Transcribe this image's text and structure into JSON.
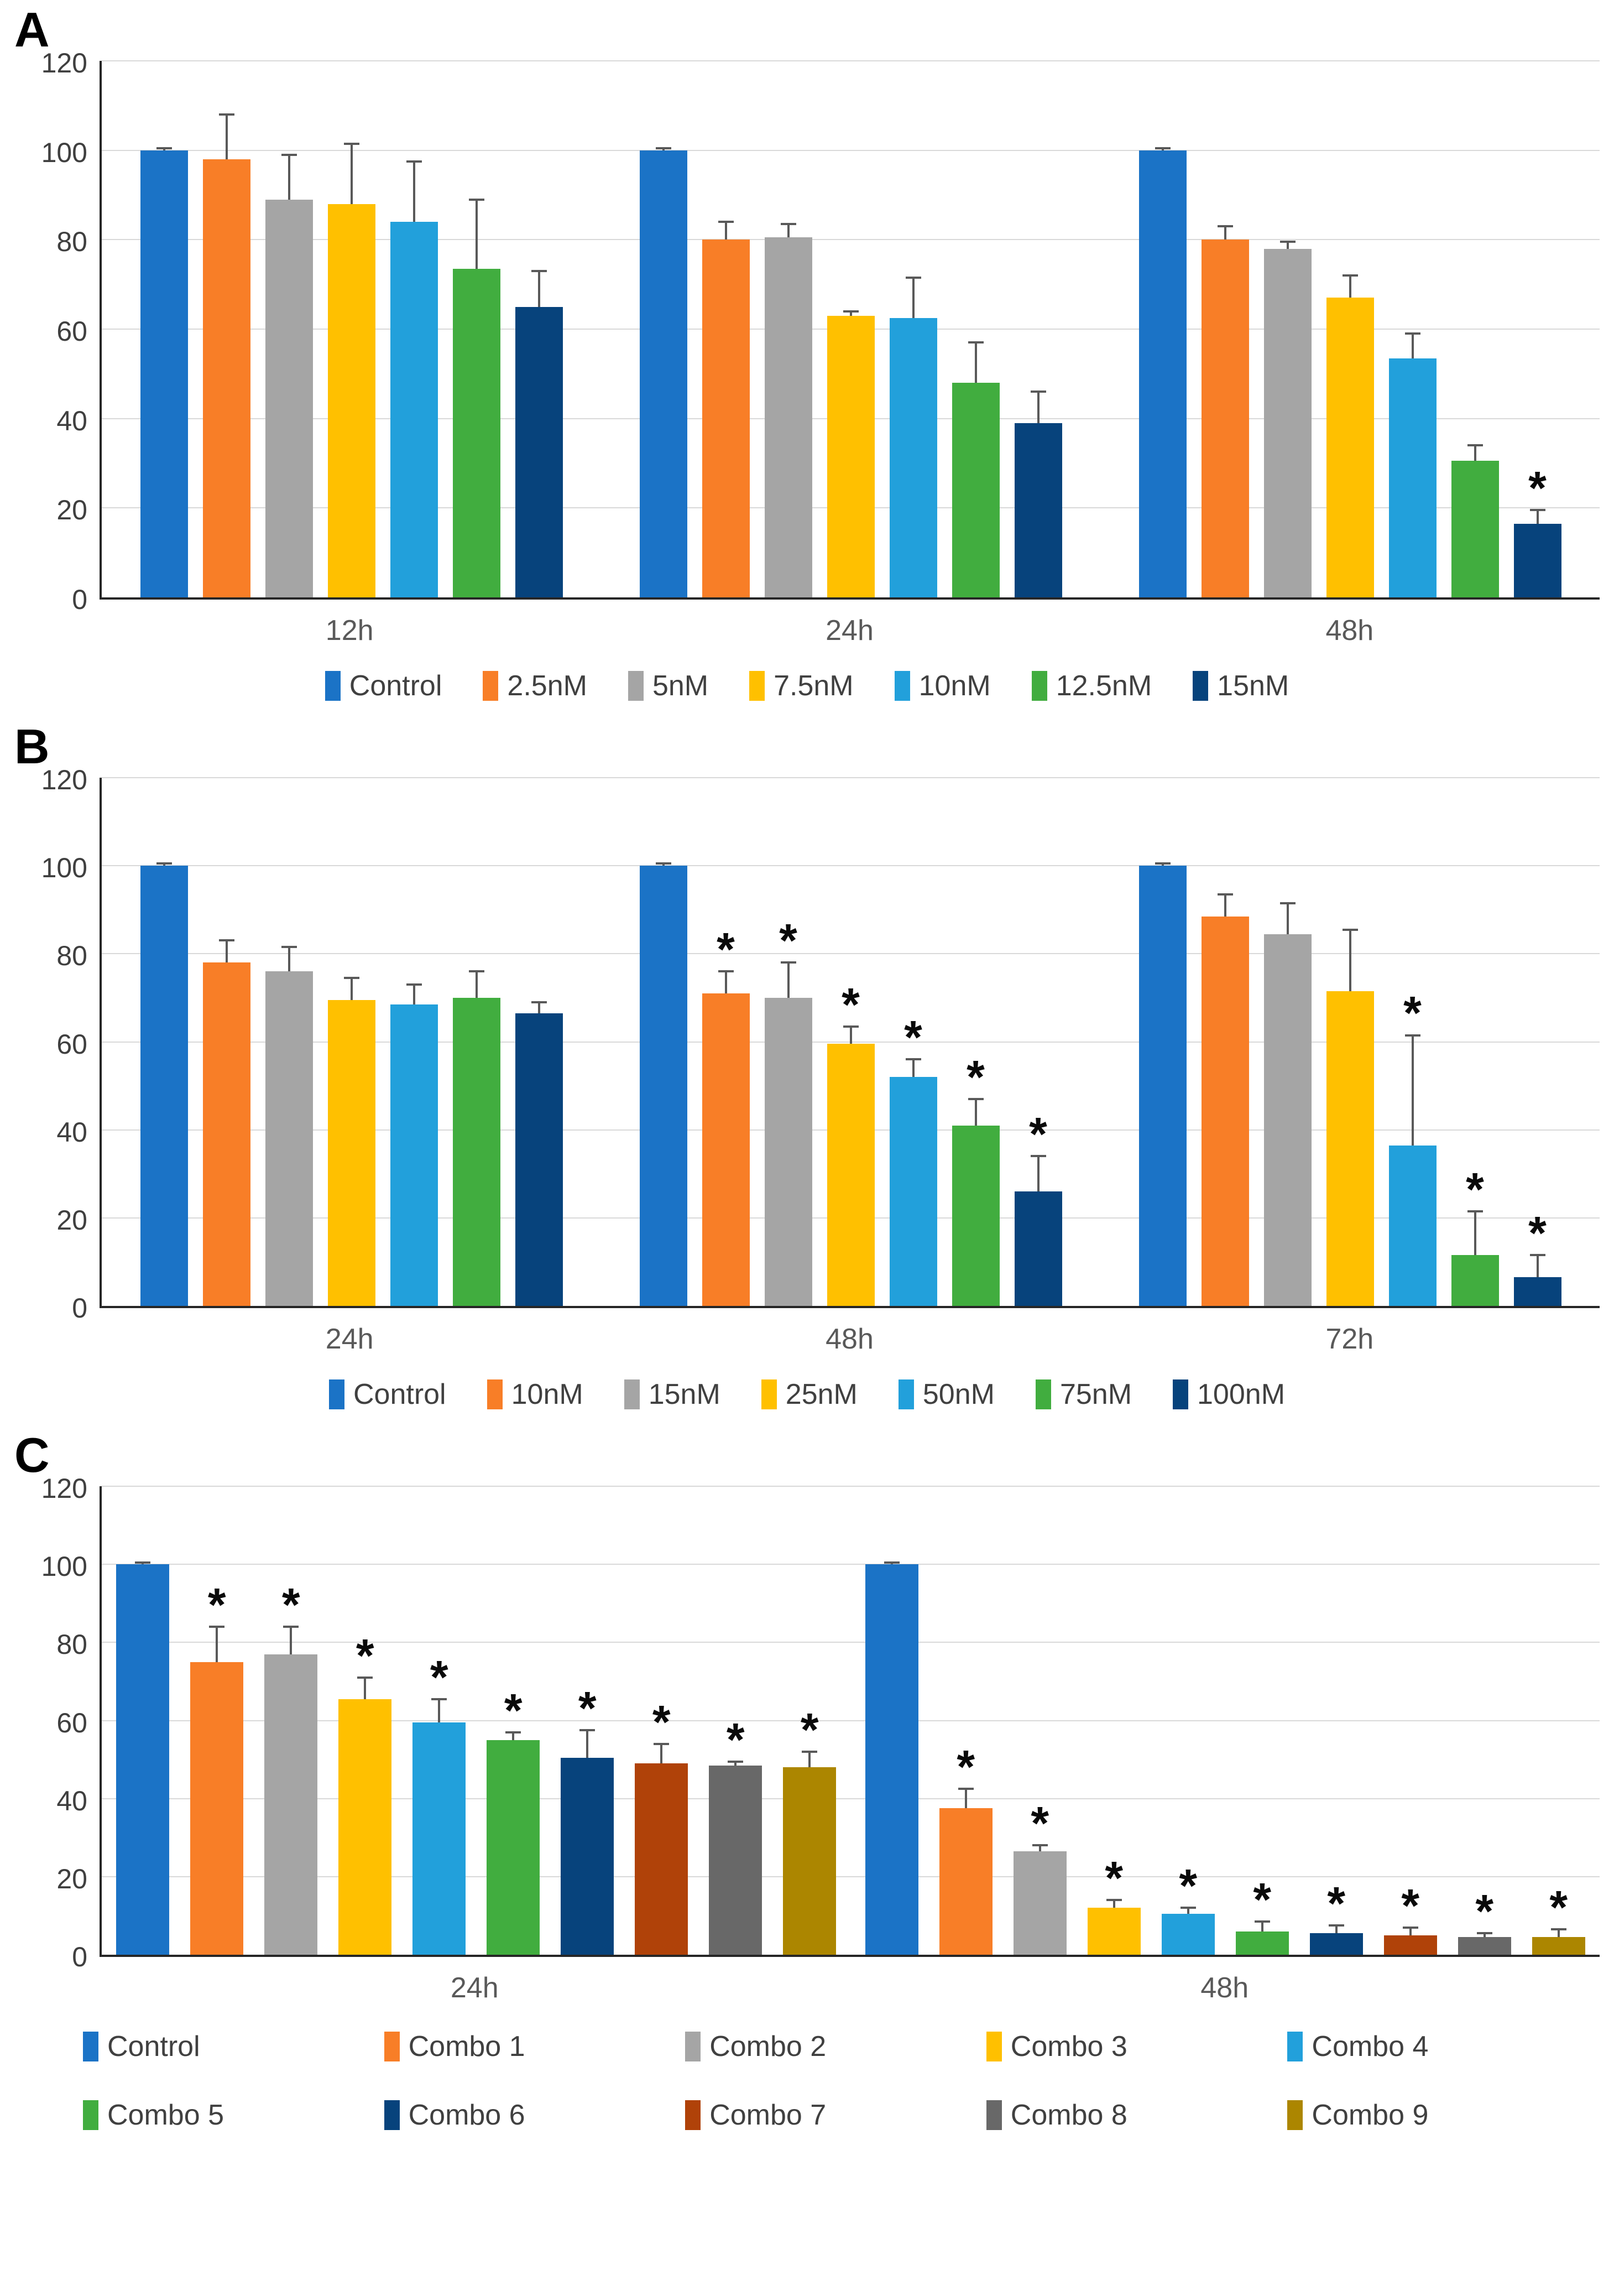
{
  "colors": {
    "axis_line": "#262626",
    "gridline": "#D9D9D9",
    "error_bar": "#595959",
    "tick_text": "#3F3F3F",
    "category_text": "#595959",
    "legend_text": "#404040"
  },
  "chart_data": [
    {
      "panel_label": "A",
      "type": "bar",
      "categories": [
        "12h",
        "24h",
        "48h"
      ],
      "ylim": [
        0,
        120
      ],
      "yticks": [
        0,
        20,
        40,
        60,
        80,
        100,
        120
      ],
      "grid": true,
      "legend_position": "bottom",
      "significance_marker": "*",
      "series": [
        {
          "name": "Control",
          "color": "#1B73C6",
          "values": [
            100,
            100,
            100
          ],
          "errors": [
            0.5,
            0.5,
            0.5
          ],
          "sig": [
            false,
            false,
            false
          ]
        },
        {
          "name": "2.5nM",
          "color": "#F87E27",
          "values": [
            98,
            80,
            80
          ],
          "errors": [
            10,
            4,
            3
          ],
          "sig": [
            false,
            false,
            false
          ]
        },
        {
          "name": "5nM",
          "color": "#A5A5A5",
          "values": [
            89,
            80.5,
            78
          ],
          "errors": [
            10,
            3,
            1.5
          ],
          "sig": [
            false,
            false,
            false
          ]
        },
        {
          "name": "7.5nM",
          "color": "#FFC000",
          "values": [
            88,
            63,
            67
          ],
          "errors": [
            13.5,
            1,
            5
          ],
          "sig": [
            false,
            false,
            false
          ]
        },
        {
          "name": "10nM",
          "color": "#22A0DB",
          "values": [
            84,
            62.5,
            53.5
          ],
          "errors": [
            13.5,
            9,
            5.5
          ],
          "sig": [
            false,
            false,
            false
          ]
        },
        {
          "name": "12.5nM",
          "color": "#41AD3F",
          "values": [
            73.5,
            48,
            30.5
          ],
          "errors": [
            15.5,
            9,
            3.5
          ],
          "sig": [
            false,
            false,
            false
          ]
        },
        {
          "name": "15nM",
          "color": "#07437C",
          "values": [
            65,
            39,
            16.5
          ],
          "errors": [
            8,
            7,
            3
          ],
          "sig": [
            false,
            false,
            true
          ]
        }
      ]
    },
    {
      "panel_label": "B",
      "type": "bar",
      "categories": [
        "24h",
        "48h",
        "72h"
      ],
      "ylim": [
        0,
        120
      ],
      "yticks": [
        0,
        20,
        40,
        60,
        80,
        100,
        120
      ],
      "grid": true,
      "legend_position": "bottom",
      "significance_marker": "*",
      "series": [
        {
          "name": "Control",
          "color": "#1B73C6",
          "values": [
            100,
            100,
            100
          ],
          "errors": [
            0.5,
            0.5,
            0.5
          ],
          "sig": [
            false,
            false,
            false
          ]
        },
        {
          "name": "10nM",
          "color": "#F87E27",
          "values": [
            78,
            71,
            88.5
          ],
          "errors": [
            5,
            5,
            5
          ],
          "sig": [
            false,
            true,
            false
          ]
        },
        {
          "name": "15nM",
          "color": "#A5A5A5",
          "values": [
            76,
            70,
            84.5
          ],
          "errors": [
            5.5,
            8,
            7
          ],
          "sig": [
            false,
            true,
            false
          ]
        },
        {
          "name": "25nM",
          "color": "#FFC000",
          "values": [
            69.5,
            59.5,
            71.5
          ],
          "errors": [
            5,
            4,
            14
          ],
          "sig": [
            false,
            true,
            false
          ]
        },
        {
          "name": "50nM",
          "color": "#22A0DB",
          "values": [
            68.5,
            52,
            36.5
          ],
          "errors": [
            4.5,
            4,
            25
          ],
          "sig": [
            false,
            true,
            true
          ]
        },
        {
          "name": "75nM",
          "color": "#41AD3F",
          "values": [
            70,
            41,
            11.5
          ],
          "errors": [
            6,
            6,
            10
          ],
          "sig": [
            false,
            true,
            true
          ]
        },
        {
          "name": "100nM",
          "color": "#07437C",
          "values": [
            66.5,
            26,
            6.5
          ],
          "errors": [
            2.5,
            8,
            5
          ],
          "sig": [
            false,
            true,
            true
          ]
        }
      ]
    },
    {
      "panel_label": "C",
      "type": "bar",
      "categories": [
        "24h",
        "48h"
      ],
      "ylim": [
        0,
        120
      ],
      "yticks": [
        0,
        20,
        40,
        60,
        80,
        100,
        120
      ],
      "grid": true,
      "legend_position": "bottom-two-rows",
      "significance_marker": "*",
      "series": [
        {
          "name": "Control",
          "color": "#1B73C6",
          "values": [
            100,
            100
          ],
          "errors": [
            0.5,
            0.5
          ],
          "sig": [
            false,
            false
          ]
        },
        {
          "name": "Combo 1",
          "color": "#F87E27",
          "values": [
            75,
            37.5
          ],
          "errors": [
            9,
            5
          ],
          "sig": [
            true,
            true
          ]
        },
        {
          "name": "Combo 2",
          "color": "#A5A5A5",
          "values": [
            77,
            26.5
          ],
          "errors": [
            7,
            1.5
          ],
          "sig": [
            true,
            true
          ]
        },
        {
          "name": "Combo 3",
          "color": "#FFC000",
          "values": [
            65.5,
            12
          ],
          "errors": [
            5.5,
            2
          ],
          "sig": [
            true,
            true
          ]
        },
        {
          "name": "Combo 4",
          "color": "#22A0DB",
          "values": [
            59.5,
            10.5
          ],
          "errors": [
            6,
            1.5
          ],
          "sig": [
            true,
            true
          ]
        },
        {
          "name": "Combo 5",
          "color": "#41AD3F",
          "values": [
            55,
            6
          ],
          "errors": [
            2,
            2.5
          ],
          "sig": [
            true,
            true
          ]
        },
        {
          "name": "Combo 6",
          "color": "#07437C",
          "values": [
            50.5,
            5.5
          ],
          "errors": [
            7,
            2
          ],
          "sig": [
            true,
            true
          ]
        },
        {
          "name": "Combo 7",
          "color": "#B04209",
          "values": [
            49,
            5
          ],
          "errors": [
            5,
            2
          ],
          "sig": [
            true,
            true
          ]
        },
        {
          "name": "Combo 8",
          "color": "#686868",
          "values": [
            48.5,
            4.5
          ],
          "errors": [
            1,
            1
          ],
          "sig": [
            true,
            true
          ]
        },
        {
          "name": "Combo 9",
          "color": "#AC8600",
          "values": [
            48,
            4.5
          ],
          "errors": [
            4,
            2
          ],
          "sig": [
            true,
            true
          ]
        }
      ]
    }
  ]
}
